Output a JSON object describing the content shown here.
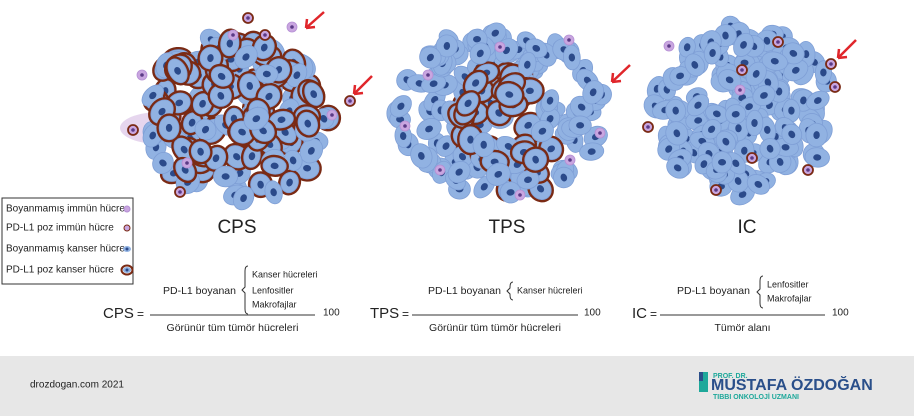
{
  "legend": [
    "Boyanmamış immün hücre",
    "PD-L1 poz immün hücre",
    "Boyanmamış kanser hücre",
    "PD-L1 poz kanser hücre"
  ],
  "panels": [
    {
      "label": "CPS",
      "formula": {
        "lhs": "CPS",
        "equals": "=",
        "numerator": "PD-L1 boyanan",
        "brace_items": [
          "Kanser hücreleri",
          "Lenfositler",
          "Makrofajlar"
        ],
        "denominator": "Görünür tüm tümör hücreleri",
        "multiplier": "100"
      }
    },
    {
      "label": "TPS",
      "formula": {
        "lhs": "TPS",
        "equals": "=",
        "numerator": "PD-L1 boyanan",
        "brace_items": [
          "Kanser hücreleri"
        ],
        "denominator": "Görünür tüm tümör hücreleri",
        "multiplier": "100"
      }
    },
    {
      "label": "IC",
      "formula": {
        "lhs": "IC",
        "equals": "=",
        "numerator": "PD-L1 boyanan",
        "brace_items": [
          "Lenfositler",
          "Makrofajlar"
        ],
        "denominator": "Tümör alanı",
        "multiplier": "100"
      }
    }
  ],
  "footer": {
    "site": "drozdogan.com 2021",
    "logo_small": "PROF. DR.",
    "logo_name": "MUSTAFA ÖZDOĞAN",
    "logo_title": "TIBBI ONKOLOJİ UZMANI"
  }
}
